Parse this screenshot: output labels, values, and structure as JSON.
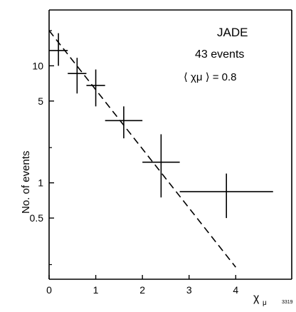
{
  "chart_data": {
    "type": "scatter",
    "annotations": {
      "experiment": "JADE",
      "events": "43 events",
      "mean_label": "⟨ χμ ⟩ = 0.8"
    },
    "xlabel": "χ",
    "xlabel_subscript": "μ",
    "ylabel": "No. of  events",
    "corner_label": "3319",
    "xlim": [
      0,
      5.2
    ],
    "ylim": [
      0.15,
      30
    ],
    "y_scale": "log",
    "x_ticks": [
      {
        "value": 0,
        "label": "0"
      },
      {
        "value": 1,
        "label": "1"
      },
      {
        "value": 2,
        "label": "2"
      },
      {
        "value": 3,
        "label": "3"
      },
      {
        "value": 4,
        "label": "4"
      }
    ],
    "y_ticks": [
      {
        "value": 10,
        "label": "10"
      },
      {
        "value": 5,
        "label": "5"
      },
      {
        "value": 1,
        "label": "1"
      },
      {
        "value": 0.5,
        "label": "0.5"
      }
    ],
    "grid": false,
    "series": [
      {
        "style": "error-bar crosses",
        "points": [
          {
            "x": 0.2,
            "y": 13.5,
            "x_lo": 0.0,
            "x_hi": 0.4,
            "y_lo": 10.0,
            "y_hi": 19.0
          },
          {
            "x": 0.6,
            "y": 8.6,
            "x_lo": 0.4,
            "x_hi": 0.8,
            "y_lo": 5.8,
            "y_hi": 11.7
          },
          {
            "x": 1.0,
            "y": 6.8,
            "x_lo": 0.8,
            "x_hi": 1.2,
            "y_lo": 4.5,
            "y_hi": 9.3
          },
          {
            "x": 1.6,
            "y": 3.4,
            "x_lo": 1.2,
            "x_hi": 2.0,
            "y_lo": 2.4,
            "y_hi": 4.5
          },
          {
            "x": 2.4,
            "y": 1.5,
            "x_lo": 2.0,
            "x_hi": 2.8,
            "y_lo": 0.75,
            "y_hi": 2.6
          },
          {
            "x": 3.8,
            "y": 0.84,
            "x_lo": 2.8,
            "x_hi": 4.8,
            "y_lo": 0.5,
            "y_hi": 1.2
          }
        ]
      },
      {
        "style": "dashed fit line",
        "x": [
          0.0,
          4.0
        ],
        "y": [
          20.0,
          0.19
        ]
      }
    ]
  }
}
